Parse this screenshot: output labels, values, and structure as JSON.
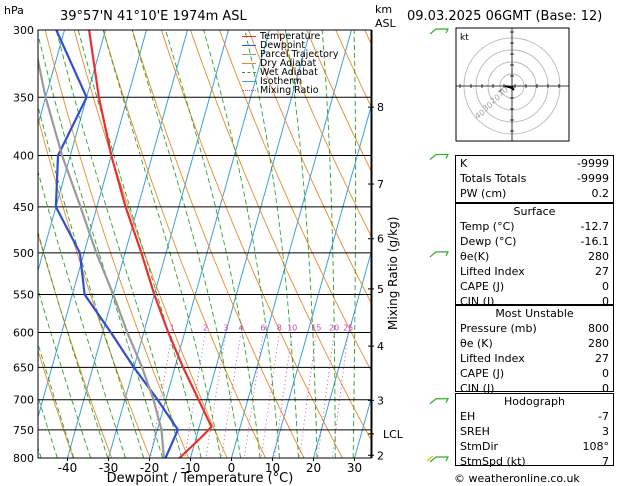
{
  "header": {
    "pressure_unit": "hPa",
    "location": "39°57'N  41°10'E  1974m  ASL",
    "height_unit_km": "km",
    "height_unit_asl": "ASL",
    "valid_time": "09.03.2025  06GMT  (Base: 12)"
  },
  "legend": [
    {
      "label": "Temperature",
      "color": "#e83030"
    },
    {
      "label": "Dewpoint",
      "color": "#2f4fd0"
    },
    {
      "label": "Parcel Trajectory",
      "color": "#9a9a9a"
    },
    {
      "label": "Dry Adiabat",
      "color": "#e88a2a"
    },
    {
      "label": "Wet Adiabat",
      "color": "#2aa02a"
    },
    {
      "label": "Isotherm",
      "color": "#3aa0d8"
    },
    {
      "label": "Mixing Ratio",
      "color": "#d040c0"
    }
  ],
  "chart_data": {
    "type": "skew-t",
    "xlabel": "Dewpoint / Temperature (°C)",
    "x_ticks": [
      -40,
      -30,
      -20,
      -10,
      0,
      10,
      20,
      30
    ],
    "pressure_levels": [
      300,
      350,
      400,
      450,
      500,
      550,
      600,
      650,
      700,
      750,
      800
    ],
    "km_ticks": [
      {
        "label": "8",
        "p": 358
      },
      {
        "label": "7",
        "p": 427
      },
      {
        "label": "6",
        "p": 484
      },
      {
        "label": "5",
        "p": 543
      },
      {
        "label": "4",
        "p": 619
      },
      {
        "label": "3",
        "p": 701
      },
      {
        "label": "2",
        "p": 795
      }
    ],
    "lcl_label": "LCL",
    "lcl_pressure": 757,
    "mixing_ratio_axis_label": "Mixing Ratio (g/kg)",
    "mixing_ratio_labels": [
      "1",
      "2",
      "3",
      "4",
      "6",
      "8",
      "10",
      "15",
      "20",
      "25"
    ],
    "series": [
      {
        "name": "Temperature",
        "color": "#e83030",
        "points": [
          [
            800,
            -12.7
          ],
          [
            765,
            -9
          ],
          [
            745,
            -7
          ],
          [
            700,
            -12
          ],
          [
            650,
            -18
          ],
          [
            600,
            -24
          ],
          [
            550,
            -30
          ],
          [
            500,
            -36
          ],
          [
            450,
            -43
          ],
          [
            400,
            -50
          ],
          [
            350,
            -57
          ],
          [
            300,
            -64
          ]
        ]
      },
      {
        "name": "Dewpoint",
        "color": "#2f4fd0",
        "points": [
          [
            800,
            -16.1
          ],
          [
            750,
            -15
          ],
          [
            700,
            -22
          ],
          [
            650,
            -30
          ],
          [
            600,
            -38
          ],
          [
            550,
            -47
          ],
          [
            500,
            -51
          ],
          [
            450,
            -60
          ],
          [
            400,
            -63
          ],
          [
            350,
            -60
          ],
          [
            300,
            -72
          ]
        ]
      },
      {
        "name": "Parcel Trajectory",
        "color": "#9a9a9a",
        "points": [
          [
            800,
            -16.5
          ],
          [
            750,
            -19
          ],
          [
            700,
            -23
          ],
          [
            650,
            -28
          ],
          [
            600,
            -34
          ],
          [
            550,
            -40
          ],
          [
            500,
            -47
          ],
          [
            450,
            -54
          ],
          [
            400,
            -62
          ],
          [
            350,
            -70
          ],
          [
            300,
            -78
          ]
        ]
      }
    ],
    "wind_barb_pressures": [
      300,
      400,
      500,
      700,
      800
    ]
  },
  "indices": {
    "rows": [
      {
        "label": "K",
        "value": "-9999"
      },
      {
        "label": "Totals Totals",
        "value": "-9999"
      },
      {
        "label": "PW (cm)",
        "value": "0.2"
      }
    ]
  },
  "surface": {
    "title": "Surface",
    "rows": [
      {
        "label": "Temp (°C)",
        "value": "-12.7"
      },
      {
        "label": "Dewp (°C)",
        "value": "-16.1"
      },
      {
        "label": "θe(K)",
        "value": "280"
      },
      {
        "label": "Lifted Index",
        "value": "27"
      },
      {
        "label": "CAPE (J)",
        "value": "0"
      },
      {
        "label": "CIN (J)",
        "value": "0"
      }
    ]
  },
  "most_unstable": {
    "title": "Most Unstable",
    "rows": [
      {
        "label": "Pressure (mb)",
        "value": "800"
      },
      {
        "label": "θe (K)",
        "value": "280"
      },
      {
        "label": "Lifted Index",
        "value": "27"
      },
      {
        "label": "CAPE (J)",
        "value": "0"
      },
      {
        "label": "CIN (J)",
        "value": "0"
      }
    ]
  },
  "hodograph_table": {
    "title": "Hodograph",
    "rows": [
      {
        "label": "EH",
        "value": "-7"
      },
      {
        "label": "SREH",
        "value": "3"
      },
      {
        "label": "StmDir",
        "value": "108°"
      },
      {
        "label": "StmSpd (kt)",
        "value": "7"
      }
    ]
  },
  "hodograph": {
    "unit_label": "kt",
    "ring_labels": [
      "10",
      "20",
      "30",
      "40"
    ]
  },
  "footer": {
    "credit": "© weatheronline.co.uk"
  }
}
